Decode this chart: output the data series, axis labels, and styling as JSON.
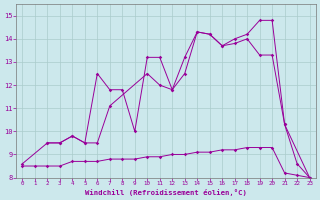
{
  "xlabel": "Windchill (Refroidissement éolien,°C)",
  "bg_color": "#cce8ec",
  "grid_color": "#aacccc",
  "line_color": "#990099",
  "xlim": [
    -0.5,
    23.5
  ],
  "ylim": [
    8,
    15.5
  ],
  "yticks": [
    8,
    9,
    10,
    11,
    12,
    13,
    14,
    15
  ],
  "xticks": [
    0,
    1,
    2,
    3,
    4,
    5,
    6,
    7,
    8,
    9,
    10,
    11,
    12,
    13,
    14,
    15,
    16,
    17,
    18,
    19,
    20,
    21,
    22,
    23
  ],
  "series1_x": [
    0,
    1,
    2,
    3,
    4,
    5,
    6,
    7,
    8,
    9,
    10,
    11,
    12,
    13,
    14,
    15,
    16,
    17,
    18,
    19,
    20,
    21,
    22,
    23
  ],
  "series1_y": [
    8.5,
    8.5,
    8.5,
    8.5,
    8.7,
    8.7,
    8.7,
    8.8,
    8.8,
    8.8,
    8.9,
    8.9,
    9.0,
    9.0,
    9.1,
    9.1,
    9.2,
    9.2,
    9.3,
    9.3,
    9.3,
    8.2,
    8.1,
    8.0
  ],
  "series2_x": [
    0,
    2,
    3,
    4,
    5,
    6,
    7,
    10,
    11,
    12,
    13,
    14,
    15,
    16,
    17,
    18,
    19,
    20,
    21,
    22,
    23
  ],
  "series2_y": [
    8.6,
    9.5,
    9.5,
    9.8,
    9.5,
    9.5,
    11.1,
    12.5,
    12.0,
    11.8,
    12.5,
    14.3,
    14.2,
    13.7,
    13.8,
    14.0,
    13.3,
    13.3,
    10.3,
    8.6,
    8.0
  ],
  "series3_x": [
    2,
    3,
    4,
    5,
    6,
    7,
    8,
    9,
    10,
    11,
    12,
    13,
    14,
    15,
    16,
    17,
    18,
    19,
    20,
    21,
    23
  ],
  "series3_y": [
    9.5,
    9.5,
    9.8,
    9.5,
    12.5,
    11.8,
    11.8,
    10.0,
    13.2,
    13.2,
    11.8,
    13.2,
    14.3,
    14.2,
    13.7,
    14.0,
    14.2,
    14.8,
    14.8,
    10.3,
    8.0
  ]
}
